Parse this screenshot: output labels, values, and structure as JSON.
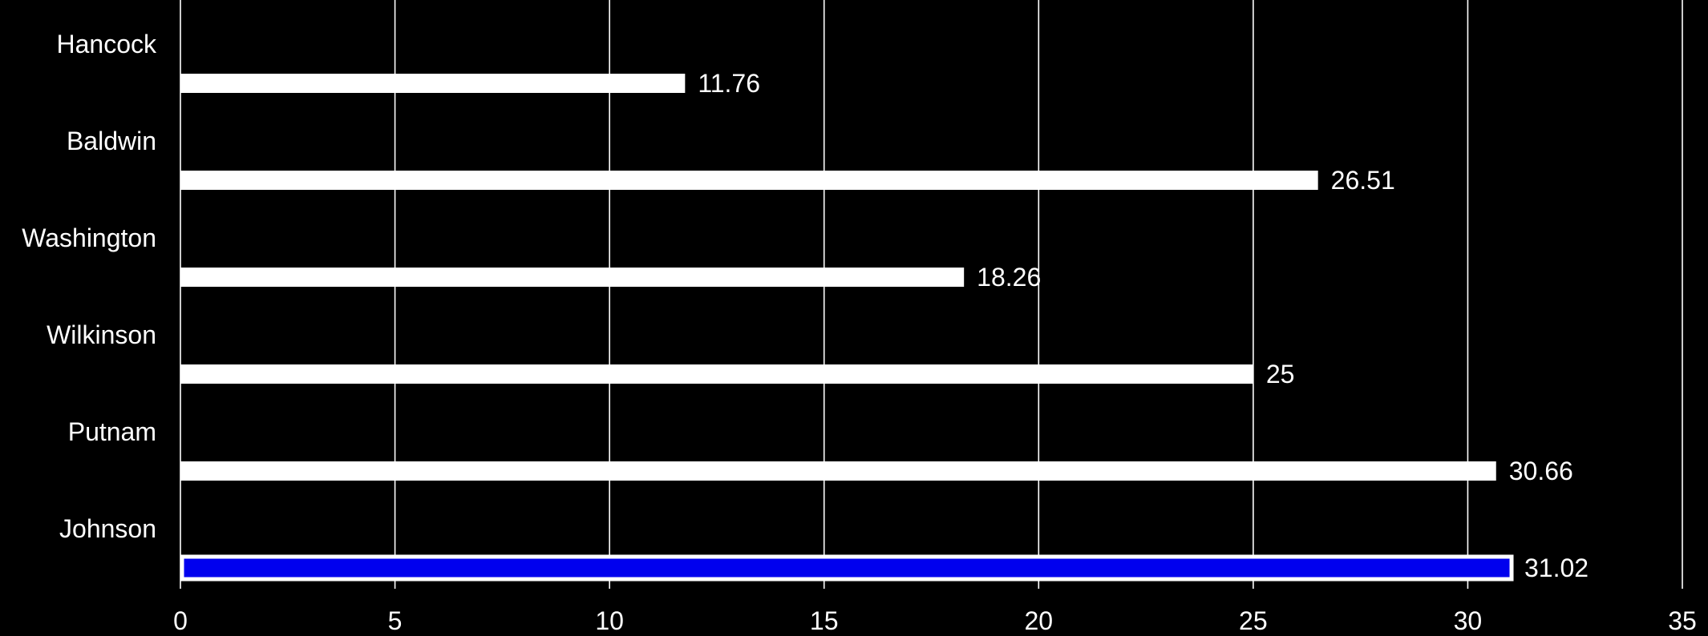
{
  "chart_data": {
    "type": "bar",
    "orientation": "horizontal",
    "title": "",
    "xlabel": "",
    "ylabel": "",
    "categories": [
      "Hancock",
      "Baldwin",
      "Washington",
      "Wilkinson",
      "Putnam",
      "Johnson"
    ],
    "values": [
      11.76,
      26.51,
      18.26,
      25,
      30.66,
      31.02
    ],
    "data_labels": [
      "11.76",
      "26.51",
      "18.26",
      "25",
      "30.66",
      "31.02"
    ],
    "highlight_category": "Johnson",
    "xlim": [
      0,
      35
    ],
    "x_ticks": [
      0,
      5,
      10,
      15,
      20,
      25,
      30,
      35
    ],
    "x_tick_labels": [
      "0",
      "5",
      "10",
      "15",
      "20",
      "25",
      "30",
      "35"
    ],
    "grid": "vertical",
    "legend": "none",
    "colors": {
      "background": "#000000",
      "bar": "#ffffff",
      "highlight_bar": "#0000ee",
      "highlight_border": "#ffffff",
      "grid": "#ffffff",
      "text": "#ffffff"
    }
  }
}
